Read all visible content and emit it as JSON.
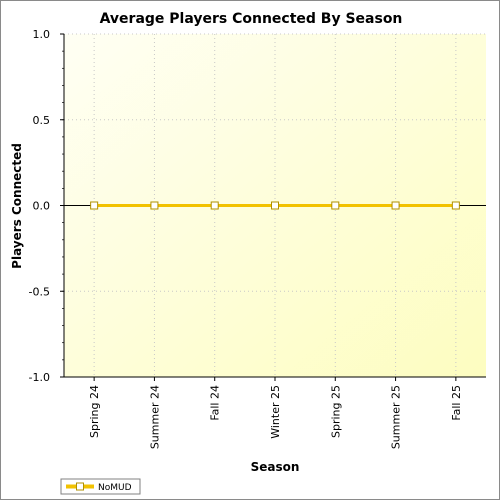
{
  "chart_data": {
    "type": "line",
    "title": "Average Players Connected By Season",
    "xlabel": "Season",
    "ylabel": "Players Connected",
    "categories": [
      "Spring 24",
      "Summer 24",
      "Fall 24",
      "Winter 25",
      "Spring 25",
      "Summer 25",
      "Fall 25"
    ],
    "series": [
      {
        "name": "NoMUD",
        "values": [
          0,
          0,
          0,
          0,
          0,
          0,
          0
        ],
        "color": "#f2c200"
      }
    ],
    "ylim": [
      -1.0,
      1.0
    ],
    "yticks": [
      "1.0",
      "0.5",
      "0.0",
      "-0.5",
      "-1.0"
    ],
    "grid": true,
    "legend": "bottom-left",
    "colors": {
      "plot_top_left": "#fffff4",
      "plot_bottom_right": "#fdfdc0",
      "grid": "#c8c8c8"
    }
  }
}
